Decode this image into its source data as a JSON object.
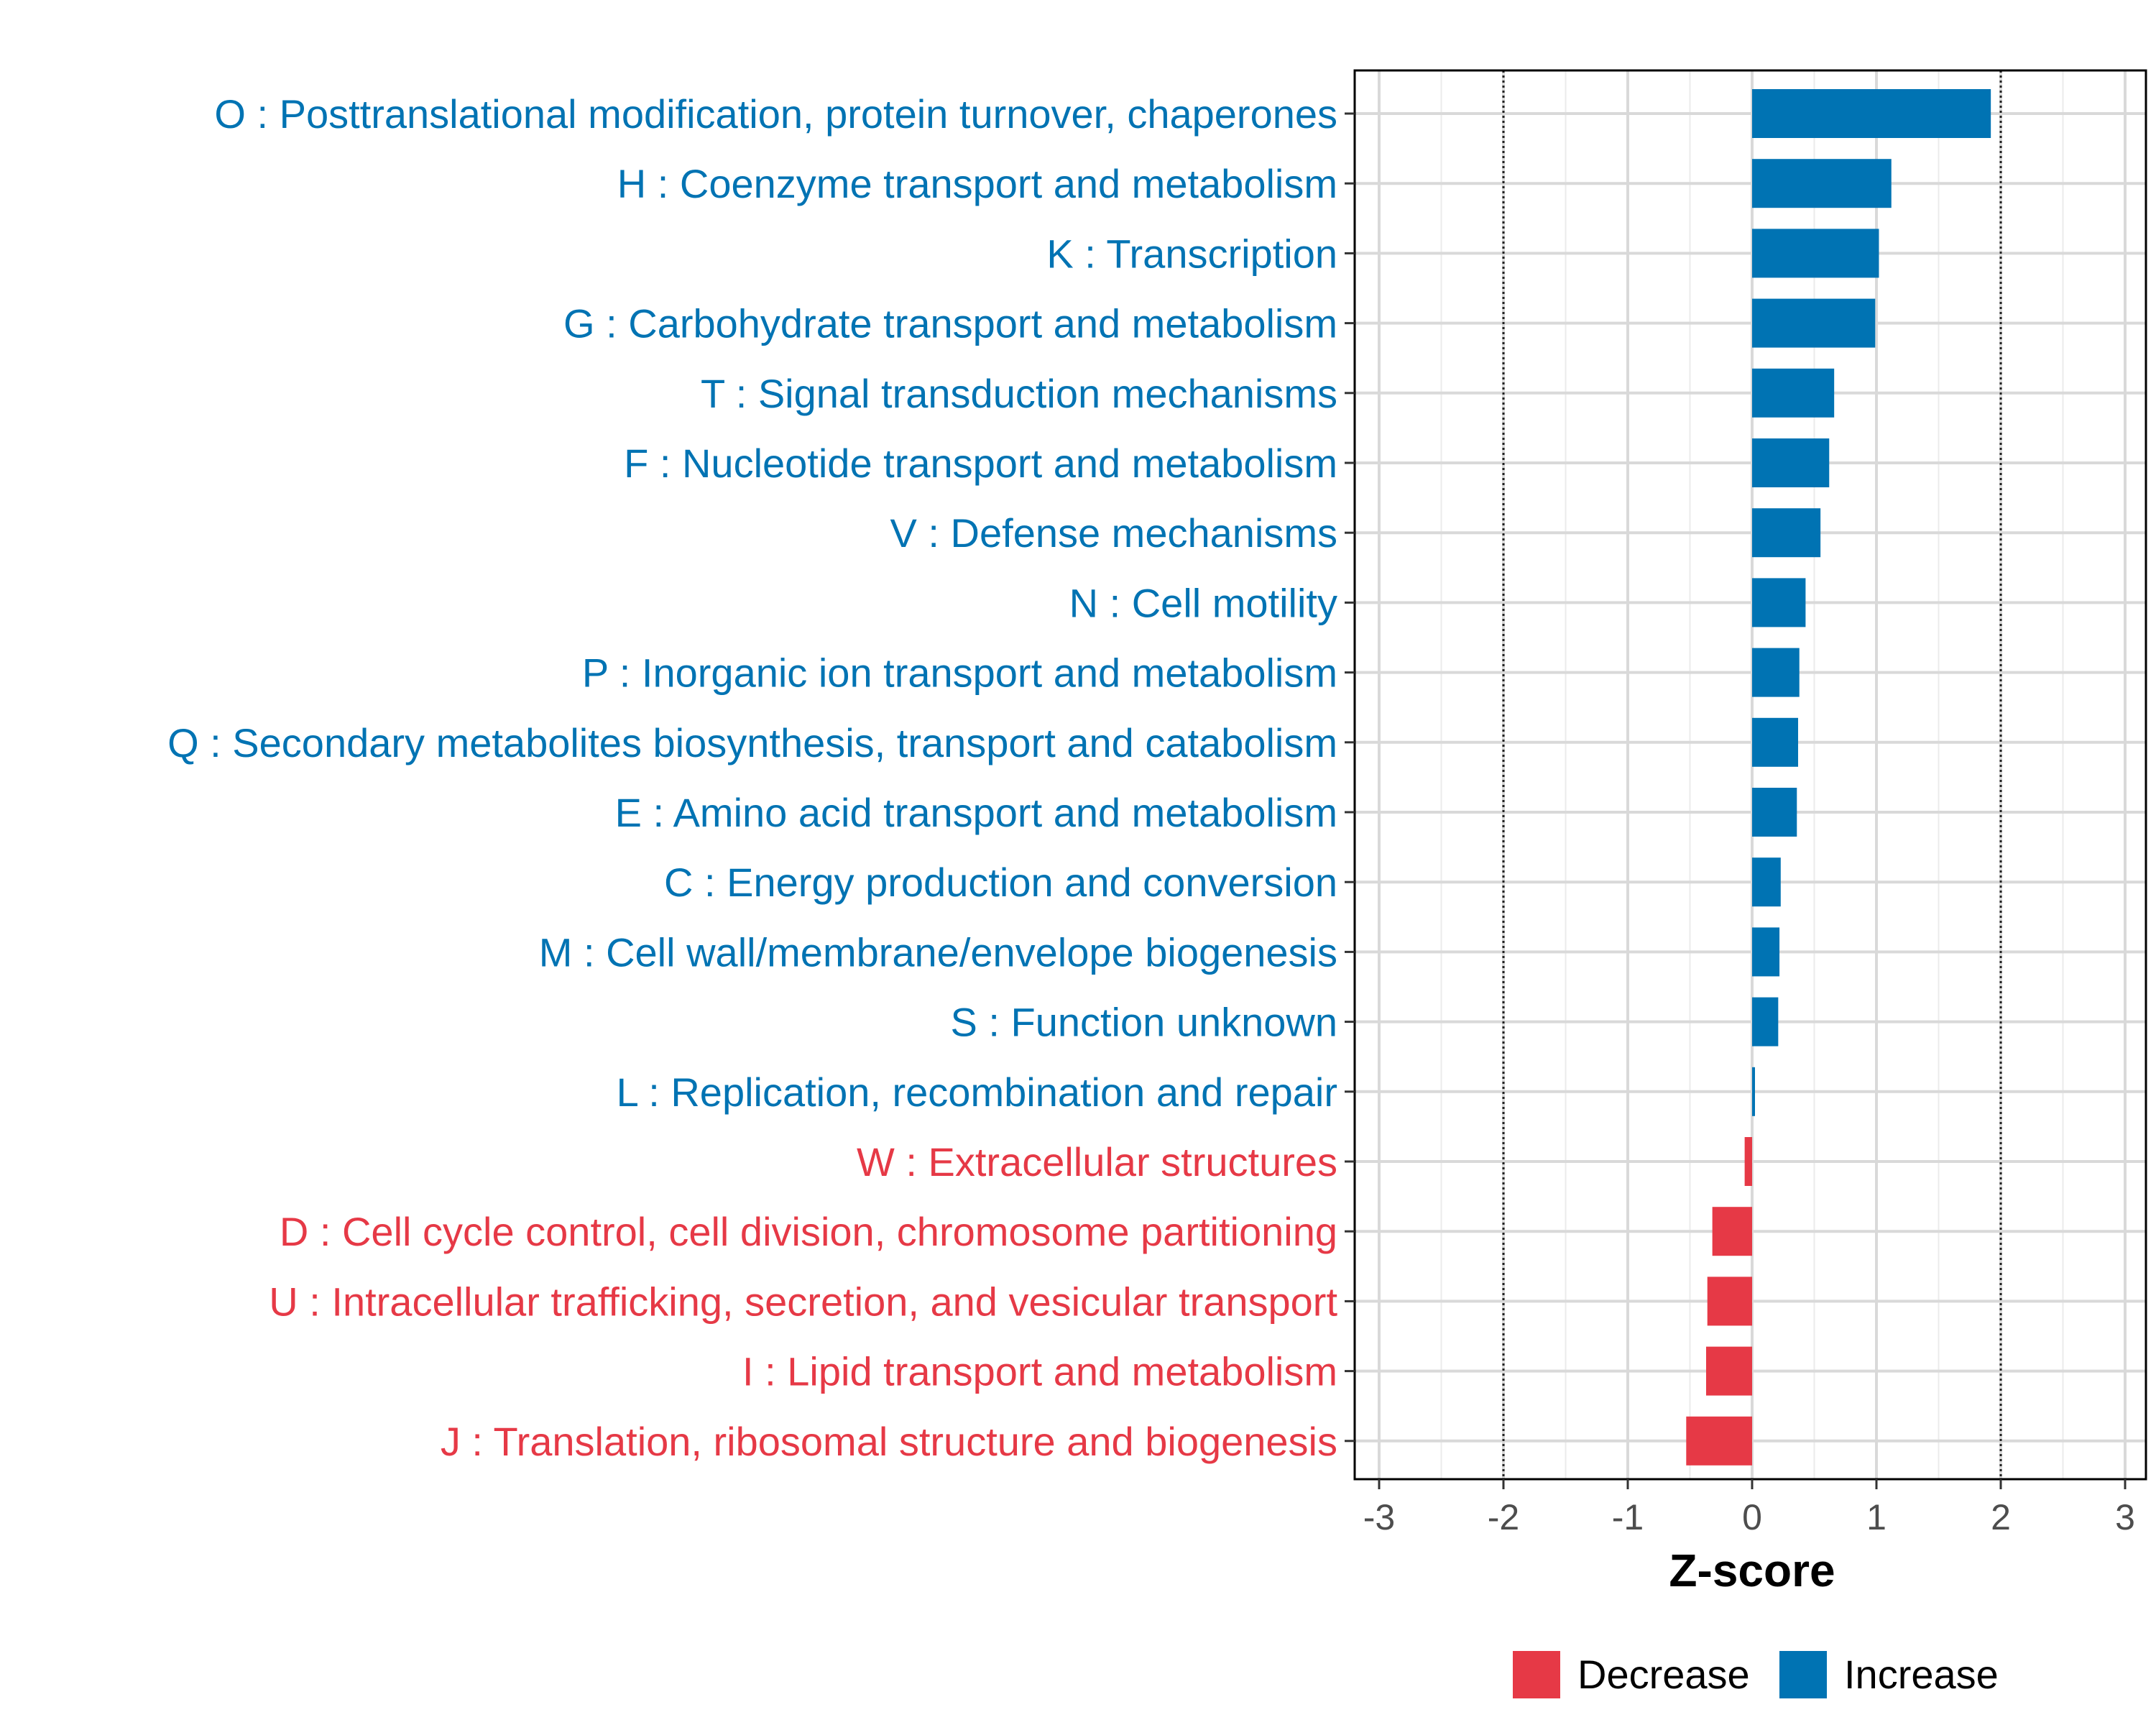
{
  "chart_data": {
    "type": "bar",
    "orientation": "horizontal",
    "title": "",
    "xlabel": "Z-score",
    "ylabel": "",
    "xlim": [
      -3.2,
      3.2
    ],
    "x_ticks": [
      "-3",
      "-2",
      "-1",
      "0",
      "1",
      "2",
      "3"
    ],
    "x_tick_values": [
      -3,
      -2,
      -1,
      0,
      1,
      2,
      3
    ],
    "reference_lines": [
      -2,
      2
    ],
    "grid": true,
    "legend_position": "bottom",
    "colors": {
      "Decrease": "#e63946",
      "Increase": "#0073b3"
    },
    "legend": [
      {
        "label": "Decrease",
        "color": "#e63946"
      },
      {
        "label": "Increase",
        "color": "#0073b3"
      }
    ],
    "categories": [
      "O : Posttranslational modification, protein turnover, chaperones",
      "H : Coenzyme transport and metabolism",
      "K : Transcription",
      "G : Carbohydrate transport and metabolism",
      "T : Signal transduction mechanisms",
      "F : Nucleotide transport and metabolism",
      "V : Defense mechanisms",
      "N : Cell motility",
      "P : Inorganic ion transport and metabolism",
      "Q : Secondary metabolites biosynthesis, transport and catabolism",
      "E : Amino acid transport and metabolism",
      "C : Energy production and conversion",
      "M : Cell wall/membrane/envelope biogenesis",
      "S : Function unknown",
      "L : Replication, recombination and repair",
      "W : Extracellular structures",
      "D : Cell cycle control, cell division, chromosome partitioning",
      "U : Intracellular trafficking, secretion, and vesicular transport",
      "I : Lipid transport and metabolism",
      "J : Translation, ribosomal structure and biogenesis"
    ],
    "values": [
      1.92,
      1.12,
      1.02,
      0.99,
      0.66,
      0.62,
      0.55,
      0.43,
      0.38,
      0.37,
      0.36,
      0.23,
      0.22,
      0.21,
      0.02,
      -0.06,
      -0.32,
      -0.36,
      -0.37,
      -0.53
    ],
    "groups": [
      "Increase",
      "Increase",
      "Increase",
      "Increase",
      "Increase",
      "Increase",
      "Increase",
      "Increase",
      "Increase",
      "Increase",
      "Increase",
      "Increase",
      "Increase",
      "Increase",
      "Increase",
      "Decrease",
      "Decrease",
      "Decrease",
      "Decrease",
      "Decrease"
    ]
  }
}
